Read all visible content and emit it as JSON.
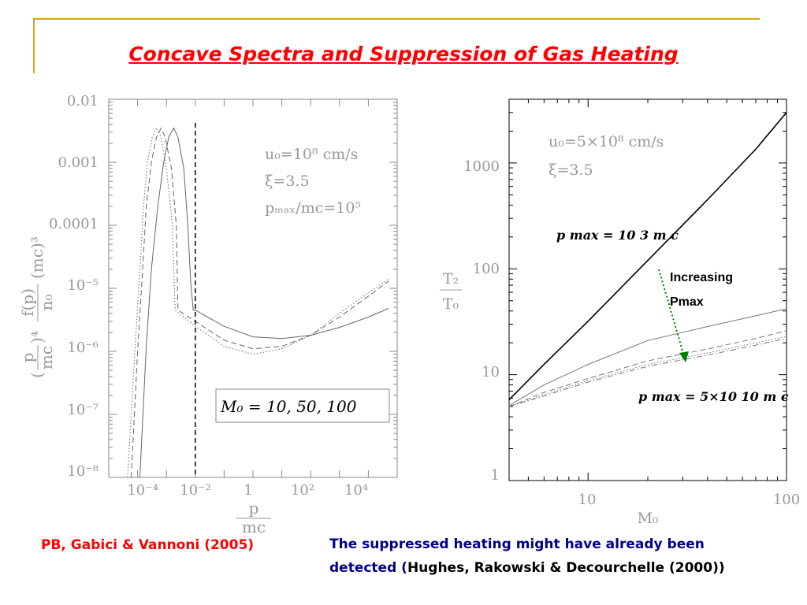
{
  "slide": {
    "title": "Concave Spectra and Suppression of Gas Heating",
    "citation_left": "PB, Gabici & Vannoni (2005)",
    "citation_right_line1": "The suppressed heating might have already been",
    "citation_right_line2_a": "detected (",
    "citation_right_line2_b": "Hughes, Rakowski & Decourchelle (2000))"
  },
  "chart_data": [
    {
      "type": "line",
      "xscale": "log",
      "yscale": "log",
      "xlim": [
        1e-05,
        100000
      ],
      "ylim": [
        1e-08,
        0.01
      ],
      "xticks": [
        "10⁻⁴",
        "10⁻²",
        "1",
        "10²",
        "10⁴"
      ],
      "yticks": [
        "0.01",
        "0.001",
        "0.0001",
        "10⁻⁵",
        "10⁻⁶",
        "10⁻⁷",
        "10⁻⁸"
      ],
      "xlabel_num": "p",
      "xlabel_den": "mc",
      "ylabel_a": "(",
      "ylabel_b": "p",
      "ylabel_c": "mc",
      "ylabel_d": ")⁴",
      "ylabel_e": "f(p)",
      "ylabel_f": "n₀",
      "ylabel_g": "(mc)³",
      "annotation_lines": [
        "u₀=10⁸ cm/s",
        "ξ=3.5",
        "pₘₐₓ/mc=10⁵"
      ],
      "legend_text": "M₀ = 10,   50,   100",
      "vline_x": 0.01,
      "series": [
        {
          "style": "solid",
          "label": "M₀ = 10",
          "points": [
            [
              0.00012,
              1e-08
            ],
            [
              0.0002,
              1.2e-06
            ],
            [
              0.0003,
              2e-05
            ],
            [
              0.0005,
              0.0002
            ],
            [
              0.0008,
              0.001
            ],
            [
              0.0012,
              0.0025
            ],
            [
              0.0018,
              0.0035
            ],
            [
              0.0025,
              0.0025
            ],
            [
              0.004,
              0.0008
            ],
            [
              0.0055,
              0.0001
            ],
            [
              0.007,
              1.2e-05
            ],
            [
              0.0085,
              4.5e-06
            ],
            [
              0.01,
              4.5e-06
            ],
            [
              0.1,
              2.5e-06
            ],
            [
              1,
              1.7e-06
            ],
            [
              10,
              1.6e-06
            ],
            [
              100,
              1.8e-06
            ],
            [
              1000,
              2.4e-06
            ],
            [
              10000,
              3.5e-06
            ],
            [
              50000,
              4.8e-06
            ]
          ]
        },
        {
          "style": "dashed",
          "label": "M₀ = 50",
          "points": [
            [
              6e-05,
              1e-08
            ],
            [
              0.0001,
              1e-06
            ],
            [
              0.00015,
              2e-05
            ],
            [
              0.0002,
              0.0002
            ],
            [
              0.0003,
              0.001
            ],
            [
              0.00045,
              0.0025
            ],
            [
              0.00065,
              0.0035
            ],
            [
              0.0009,
              0.0025
            ],
            [
              0.0015,
              0.0008
            ],
            [
              0.0022,
              0.0001
            ],
            [
              0.0025,
              4.5e-06
            ],
            [
              0.01,
              3e-06
            ],
            [
              0.1,
              1.5e-06
            ],
            [
              1,
              1.1e-06
            ],
            [
              10,
              1.2e-06
            ],
            [
              100,
              1.8e-06
            ],
            [
              1000,
              3.5e-06
            ],
            [
              10000,
              7.5e-06
            ],
            [
              50000,
              1.3e-05
            ]
          ]
        },
        {
          "style": "dotted",
          "label": "M₀ = 100",
          "points": [
            [
              4.5e-05,
              1e-08
            ],
            [
              8e-05,
              1e-06
            ],
            [
              0.00012,
              2e-05
            ],
            [
              0.00016,
              0.0002
            ],
            [
              0.00022,
              0.001
            ],
            [
              0.00032,
              0.0025
            ],
            [
              0.00045,
              0.0035
            ],
            [
              0.00065,
              0.0025
            ],
            [
              0.001,
              0.0008
            ],
            [
              0.0016,
              0.0001
            ],
            [
              0.002,
              4.5e-06
            ],
            [
              0.01,
              2.5e-06
            ],
            [
              0.1,
              1.2e-06
            ],
            [
              1,
              9e-07
            ],
            [
              10,
              1.1e-06
            ],
            [
              100,
              1.8e-06
            ],
            [
              1000,
              4e-06
            ],
            [
              10000,
              8.5e-06
            ],
            [
              50000,
              1.4e-05
            ]
          ]
        }
      ]
    },
    {
      "type": "line",
      "xscale": "log",
      "yscale": "log",
      "xlim": [
        4,
        100
      ],
      "ylim": [
        1,
        4000
      ],
      "xticks": [
        "10",
        "100"
      ],
      "yticks": [
        "1",
        "10",
        "100",
        "1000"
      ],
      "xlabel": "M₀",
      "ylabel_num": "T₂",
      "ylabel_den": "T₀",
      "annotation_lines": [
        "u₀=5×10⁸ cm/s",
        "ξ=3.5"
      ],
      "label_top": "p max = 10 3 m c",
      "label_bottom": "p max = 5×10 10 m c",
      "arrow_label_1": "Increasing",
      "arrow_label_2": "Pmax",
      "arrow_color": "#008000",
      "series": [
        {
          "style": "thick",
          "label": "pmax = 10³ mc",
          "points": [
            [
              4,
              5.8
            ],
            [
              6,
              12.5
            ],
            [
              10,
              32
            ],
            [
              20,
              120
            ],
            [
              40,
              450
            ],
            [
              70,
              1350
            ],
            [
              100,
              3000
            ]
          ]
        },
        {
          "style": "solid",
          "points": [
            [
              4,
              5.1
            ],
            [
              6,
              8
            ],
            [
              10,
              12.5
            ],
            [
              20,
              21
            ],
            [
              40,
              28.5
            ],
            [
              70,
              36
            ],
            [
              100,
              42
            ]
          ]
        },
        {
          "style": "dashed",
          "points": [
            [
              4,
              5
            ],
            [
              6,
              6.8
            ],
            [
              10,
              9.2
            ],
            [
              20,
              13.5
            ],
            [
              40,
              17.5
            ],
            [
              70,
              22
            ],
            [
              100,
              26
            ]
          ]
        },
        {
          "style": "dotted",
          "points": [
            [
              4,
              5
            ],
            [
              6,
              6.5
            ],
            [
              10,
              8.8
            ],
            [
              20,
              12.5
            ],
            [
              40,
              16
            ],
            [
              70,
              20
            ],
            [
              100,
              23
            ]
          ]
        },
        {
          "style": "dashdot",
          "points": [
            [
              4,
              5
            ],
            [
              6,
              6.3
            ],
            [
              10,
              8.5
            ],
            [
              20,
              12
            ],
            [
              40,
              15.3
            ],
            [
              70,
              19
            ],
            [
              100,
              22
            ]
          ]
        }
      ]
    }
  ]
}
